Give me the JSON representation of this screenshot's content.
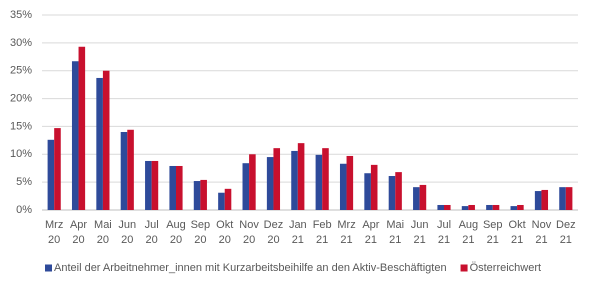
{
  "chart_data": {
    "type": "bar",
    "categories": [
      [
        "Mrz",
        "20"
      ],
      [
        "Apr",
        "20"
      ],
      [
        "Mai",
        "20"
      ],
      [
        "Jun",
        "20"
      ],
      [
        "Jul",
        "20"
      ],
      [
        "Aug",
        "20"
      ],
      [
        "Sep",
        "20"
      ],
      [
        "Okt",
        "20"
      ],
      [
        "Nov",
        "20"
      ],
      [
        "Dez",
        "20"
      ],
      [
        "Jan",
        "21"
      ],
      [
        "Feb",
        "21"
      ],
      [
        "Mrz",
        "21"
      ],
      [
        "Apr",
        "21"
      ],
      [
        "Mai",
        "21"
      ],
      [
        "Jun",
        "21"
      ],
      [
        "Jul",
        "21"
      ],
      [
        "Aug",
        "21"
      ],
      [
        "Sep",
        "21"
      ],
      [
        "Okt",
        "21"
      ],
      [
        "Nov",
        "21"
      ],
      [
        "Dez",
        "21"
      ]
    ],
    "series": [
      {
        "name": "Anteil der Arbeitnehmer_innen mit Kurzarbeitsbeihilfe an den Aktiv-Beschäftigten",
        "color": "#2e4a9a",
        "values": [
          12.6,
          26.7,
          23.7,
          14.0,
          8.8,
          7.9,
          5.2,
          3.1,
          8.4,
          9.5,
          10.6,
          9.9,
          8.3,
          6.6,
          6.1,
          4.1,
          0.9,
          0.7,
          0.9,
          0.7,
          3.4,
          4.1
        ]
      },
      {
        "name": "Österreichwert",
        "color": "#c8102e",
        "values": [
          14.7,
          29.3,
          25.0,
          14.4,
          8.8,
          7.9,
          5.4,
          3.8,
          10.0,
          11.1,
          12.0,
          11.1,
          9.7,
          8.1,
          6.8,
          4.5,
          0.9,
          0.9,
          0.9,
          0.9,
          3.6,
          4.1
        ]
      }
    ],
    "ylim": [
      0,
      35
    ],
    "yticks": [
      {
        "value": 0,
        "label": "0%"
      },
      {
        "value": 5,
        "label": "5%"
      },
      {
        "value": 10,
        "label": "10%"
      },
      {
        "value": 15,
        "label": "15%"
      },
      {
        "value": 20,
        "label": "20%"
      },
      {
        "value": 25,
        "label": "25%"
      },
      {
        "value": 30,
        "label": "30%"
      },
      {
        "value": 35,
        "label": "35%"
      }
    ],
    "grid": true,
    "legend": "bottom"
  }
}
